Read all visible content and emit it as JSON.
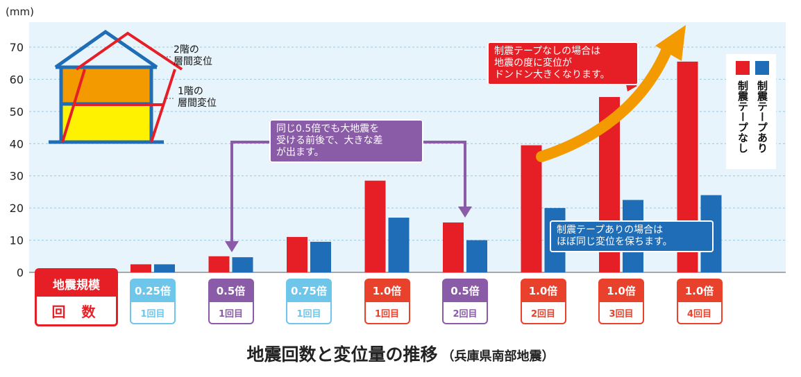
{
  "chart_data": {
    "type": "bar",
    "unit": "(mm)",
    "ylim": [
      0,
      70
    ],
    "yticks": [
      0,
      10,
      20,
      30,
      40,
      50,
      60,
      70
    ],
    "grid": true,
    "categories": [
      {
        "scale": "0.25倍",
        "count": "1回目",
        "color": "#6ec6ea"
      },
      {
        "scale": "0.5倍",
        "count": "1回目",
        "color": "#8a5ca8"
      },
      {
        "scale": "0.75倍",
        "count": "1回目",
        "color": "#6ec6ea"
      },
      {
        "scale": "1.0倍",
        "count": "1回目",
        "color": "#e8412c"
      },
      {
        "scale": "0.5倍",
        "count": "2回目",
        "color": "#8a5ca8"
      },
      {
        "scale": "1.0倍",
        "count": "2回目",
        "color": "#e8412c"
      },
      {
        "scale": "1.0倍",
        "count": "3回目",
        "color": "#e8412c"
      },
      {
        "scale": "1.0倍",
        "count": "4回目",
        "color": "#e8412c"
      }
    ],
    "series": [
      {
        "name": "制震テープなし",
        "color": "#e61f26",
        "values": [
          2.5,
          5,
          11,
          28.5,
          15.5,
          39.5,
          54.5,
          65.5
        ]
      },
      {
        "name": "制震テープあり",
        "color": "#1f6db6",
        "values": [
          2.5,
          4.7,
          9.5,
          17,
          10,
          20,
          22.5,
          24
        ]
      }
    ],
    "title": "地震回数と変位量の推移",
    "subtitle": "（兵庫県南部地震）",
    "annotations": [
      {
        "id": "purple",
        "lines": [
          "同じ0.5倍でも大地震を",
          "受ける前後で、大きな差",
          "が出ます。"
        ],
        "color": "#8a5ca8"
      },
      {
        "id": "red",
        "lines": [
          "制震テープなしの場合は",
          "地震の度に変位が",
          "ドンドン大きくなります。"
        ],
        "color": "#e61f26"
      },
      {
        "id": "blue",
        "lines": [
          "制震テープありの場合は",
          "ほぼ同じ変位を保ちます。"
        ],
        "color": "#1f6db6"
      }
    ]
  },
  "row_label": {
    "scale": "地震規模",
    "count": "回 数"
  },
  "house": {
    "floor2": [
      "2階の",
      "層間変位"
    ],
    "floor1": [
      "1階の",
      "層間変位"
    ]
  },
  "colors": {
    "plot_bg": "#e8f4fb",
    "grid": "#9cc7e0"
  }
}
